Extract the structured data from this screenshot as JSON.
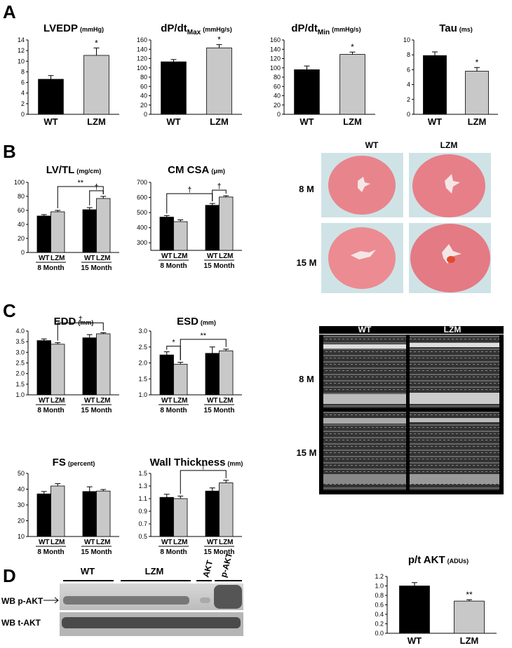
{
  "panels": [
    "A",
    "B",
    "C",
    "D"
  ],
  "chart_data": [
    {
      "type": "bar",
      "title": "LVEDP",
      "unit": "(mmHg)",
      "categories": [
        "WT",
        "LZM"
      ],
      "values": [
        6.6,
        11.1
      ],
      "errors": [
        0.7,
        1.4
      ],
      "colors": [
        "#000000",
        "#c8c8c8"
      ],
      "significance": [
        null,
        "*"
      ],
      "ylim": [
        0,
        14
      ],
      "yticks": [
        0,
        2,
        4,
        6,
        8,
        10,
        12,
        14
      ]
    },
    {
      "type": "bar",
      "title": "dP/dt",
      "title_sub": "Max",
      "unit": "(mmHg/s)",
      "categories": [
        "WT",
        "LZM"
      ],
      "values": [
        113,
        143
      ],
      "errors": [
        5,
        7
      ],
      "colors": [
        "#000000",
        "#c8c8c8"
      ],
      "significance": [
        null,
        "*"
      ],
      "ylim": [
        0,
        160
      ],
      "yticks": [
        0,
        20,
        40,
        60,
        80,
        100,
        120,
        140,
        160
      ]
    },
    {
      "type": "bar",
      "title": "dP/dt",
      "title_sub": "Min",
      "unit": "(mmHg/s)",
      "categories": [
        "WT",
        "LZM"
      ],
      "values": [
        96,
        129
      ],
      "errors": [
        8,
        5
      ],
      "colors": [
        "#000000",
        "#c8c8c8"
      ],
      "significance": [
        null,
        "*"
      ],
      "ylim": [
        0,
        160
      ],
      "yticks": [
        0,
        20,
        40,
        60,
        80,
        100,
        120,
        140,
        160
      ]
    },
    {
      "type": "bar",
      "title": "Tau",
      "unit": "(ms)",
      "categories": [
        "WT",
        "LZM"
      ],
      "values": [
        7.9,
        5.8
      ],
      "errors": [
        0.5,
        0.5
      ],
      "colors": [
        "#000000",
        "#c8c8c8"
      ],
      "significance": [
        null,
        "*"
      ],
      "ylim": [
        0,
        10
      ],
      "yticks": [
        0,
        2,
        4,
        6,
        8,
        10
      ]
    },
    {
      "type": "grouped_bar",
      "title": "LV/TL",
      "unit": "(mg/cm)",
      "groups": [
        "8 Month",
        "15 Month"
      ],
      "series": [
        {
          "name": "WT",
          "color": "#000000",
          "values": [
            52,
            61
          ],
          "errors": [
            2,
            3
          ]
        },
        {
          "name": "LZM",
          "color": "#c8c8c8",
          "values": [
            58,
            77
          ],
          "errors": [
            2,
            3
          ]
        }
      ],
      "brackets": [
        {
          "text": "**",
          "from": [
            0,
            1
          ],
          "to": [
            1,
            1
          ]
        },
        {
          "text": "†",
          "from": [
            1,
            0
          ],
          "to": [
            1,
            1
          ]
        }
      ],
      "ylim": [
        0,
        100
      ],
      "yticks": [
        0,
        20,
        40,
        60,
        80,
        100
      ]
    },
    {
      "type": "grouped_bar",
      "title": "CM CSA",
      "unit": "(μm)",
      "groups": [
        "8 Month",
        "15 Month"
      ],
      "series": [
        {
          "name": "WT",
          "color": "#000000",
          "values": [
            470,
            548
          ],
          "errors": [
            10,
            12
          ]
        },
        {
          "name": "LZM",
          "color": "#c8c8c8",
          "values": [
            440,
            603
          ],
          "errors": [
            12,
            8
          ]
        }
      ],
      "brackets": [
        {
          "text": "†",
          "from": [
            0,
            0
          ],
          "to": [
            1,
            0
          ]
        },
        {
          "text": "†",
          "from": [
            1,
            0
          ],
          "to": [
            1,
            1
          ]
        }
      ],
      "ylim": [
        250,
        700
      ],
      "yticks": [
        300,
        400,
        500,
        600,
        700
      ]
    },
    {
      "type": "grouped_bar",
      "title": "EDD",
      "unit": "(mm)",
      "groups": [
        "8 Month",
        "15 Month"
      ],
      "series": [
        {
          "name": "WT",
          "color": "#000000",
          "values": [
            3.55,
            3.68
          ],
          "errors": [
            0.08,
            0.15
          ]
        },
        {
          "name": "LZM",
          "color": "#c8c8c8",
          "values": [
            3.38,
            3.87
          ],
          "errors": [
            0.07,
            0.05
          ]
        }
      ],
      "brackets": [
        {
          "text": "†",
          "from": [
            0,
            1
          ],
          "to": [
            1,
            1
          ]
        }
      ],
      "ylim": [
        1,
        4
      ],
      "yticks": [
        {
          "value": 1,
          "label": "1.0"
        },
        1.5,
        {
          "value": 2,
          "label": "2.0"
        },
        2.5,
        {
          "value": 3,
          "label": "3.0"
        },
        3.5,
        {
          "value": 4,
          "label": "4.0"
        }
      ]
    },
    {
      "type": "grouped_bar",
      "title": "ESD",
      "unit": "(mm)",
      "groups": [
        "8 Month",
        "15 Month"
      ],
      "series": [
        {
          "name": "WT",
          "color": "#000000",
          "values": [
            2.25,
            2.3
          ],
          "errors": [
            0.1,
            0.2
          ]
        },
        {
          "name": "LZM",
          "color": "#c8c8c8",
          "values": [
            1.96,
            2.38
          ],
          "errors": [
            0.06,
            0.05
          ]
        }
      ],
      "brackets": [
        {
          "text": "*",
          "from": [
            0,
            0
          ],
          "to": [
            0,
            1
          ]
        },
        {
          "text": "**",
          "from": [
            0,
            1
          ],
          "to": [
            1,
            1
          ]
        }
      ],
      "ylim": [
        1,
        3
      ],
      "yticks": [
        {
          "value": 1,
          "label": "1.0"
        },
        1.5,
        {
          "value": 2,
          "label": "2.0"
        },
        2.5,
        {
          "value": 3,
          "label": "3.0"
        }
      ]
    },
    {
      "type": "grouped_bar",
      "title": "FS",
      "unit": "(percent)",
      "groups": [
        "8 Month",
        "15 Month"
      ],
      "series": [
        {
          "name": "WT",
          "color": "#000000",
          "values": [
            37,
            38.5
          ],
          "errors": [
            1.5,
            3
          ]
        },
        {
          "name": "LZM",
          "color": "#c8c8c8",
          "values": [
            42,
            38.8
          ],
          "errors": [
            1.5,
            1
          ]
        }
      ],
      "brackets": [],
      "ylim": [
        10,
        50
      ],
      "yticks": [
        10,
        20,
        30,
        40,
        50
      ]
    },
    {
      "type": "grouped_bar",
      "title": "Wall Thickness",
      "unit": "(mm)",
      "groups": [
        "8 Month",
        "15 Month"
      ],
      "series": [
        {
          "name": "WT",
          "color": "#000000",
          "values": [
            1.12,
            1.22
          ],
          "errors": [
            0.05,
            0.05
          ]
        },
        {
          "name": "LZM",
          "color": "#c8c8c8",
          "values": [
            1.1,
            1.35
          ],
          "errors": [
            0.04,
            0.04
          ]
        }
      ],
      "brackets": [
        {
          "text": "†",
          "from": [
            0,
            1
          ],
          "to": [
            1,
            1
          ]
        }
      ],
      "ylim": [
        0.5,
        1.5
      ],
      "yticks": [
        0.5,
        0.7,
        0.9,
        1.1,
        1.3,
        1.5
      ]
    },
    {
      "type": "bar",
      "title": "p/t AKT",
      "unit": "(ADUs)",
      "categories": [
        "WT",
        "LZM"
      ],
      "values": [
        1.0,
        0.68
      ],
      "errors": [
        0.07,
        0.03
      ],
      "colors": [
        "#000000",
        "#c8c8c8"
      ],
      "significance": [
        null,
        "**"
      ],
      "ylim": [
        0,
        1.2
      ],
      "yticks": [
        {
          "value": 0,
          "label": "0.0"
        },
        0.2,
        0.4,
        0.6,
        0.8,
        {
          "value": 1,
          "label": "1.0"
        },
        1.2
      ]
    }
  ],
  "histology": {
    "columns": [
      "WT",
      "LZM"
    ],
    "rows": [
      "8 M",
      "15 M"
    ]
  },
  "echo": {
    "columns": [
      "WT",
      "LZM"
    ],
    "rows": [
      "8 M",
      "15 M"
    ]
  },
  "western_blot": {
    "lanes": [
      "WT",
      "LZM",
      "AKT",
      "p-AKT"
    ],
    "rows": [
      "WB p-AKT",
      "WB t-AKT"
    ]
  }
}
